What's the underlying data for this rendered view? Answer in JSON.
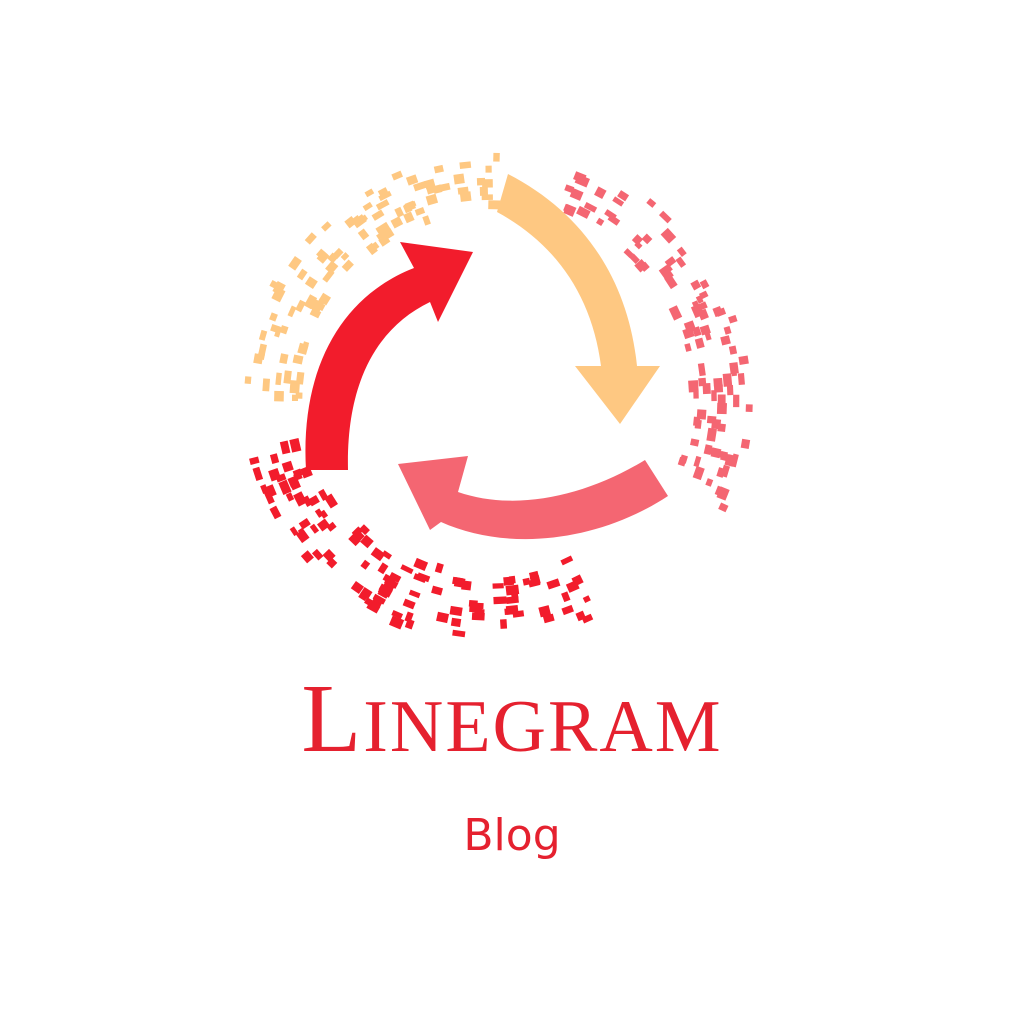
{
  "brand": {
    "name": "Linegram",
    "tagline": "Blog"
  },
  "colors": {
    "red": "#f21c2c",
    "orange": "#fec882",
    "pink": "#f46672",
    "text": "#e5212f",
    "background": "#ffffff"
  },
  "icons": {
    "logo_mark": "three-arrow-cycle-icon"
  }
}
